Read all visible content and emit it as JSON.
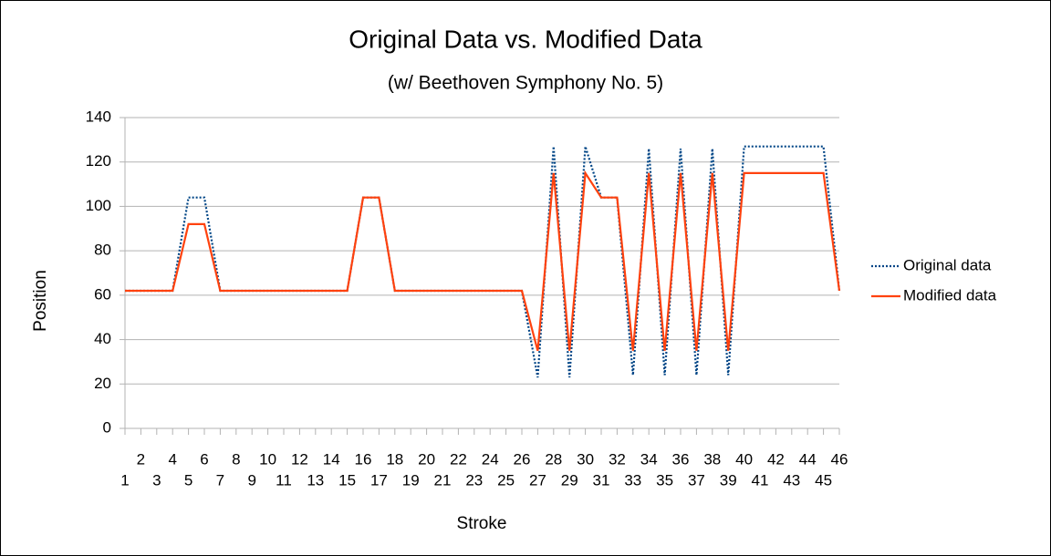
{
  "chart_data": {
    "type": "line",
    "title": "Original Data vs. Modified Data",
    "subtitle": "(w/ Beethoven Symphony No. 5)",
    "x_label": "Stroke",
    "y_label": "Position",
    "categories": [
      "1",
      "2",
      "3",
      "4",
      "5",
      "6",
      "7",
      "8",
      "9",
      "10",
      "11",
      "12",
      "13",
      "14",
      "15",
      "16",
      "17",
      "18",
      "19",
      "20",
      "21",
      "22",
      "23",
      "24",
      "25",
      "26",
      "27",
      "28",
      "29",
      "30",
      "31",
      "32",
      "33",
      "34",
      "35",
      "36",
      "37",
      "38",
      "39",
      "40",
      "41",
      "42",
      "43",
      "44",
      "45",
      "46"
    ],
    "series": [
      {
        "name": "Original data",
        "color": "#004586",
        "dash": "dotted",
        "values": [
          62,
          62,
          62,
          62,
          104,
          104,
          62,
          62,
          62,
          62,
          62,
          62,
          62,
          62,
          62,
          104,
          104,
          62,
          62,
          62,
          62,
          62,
          62,
          62,
          62,
          62,
          23,
          127,
          23,
          127,
          104,
          104,
          24,
          126,
          24,
          126,
          24,
          126,
          24,
          127,
          127,
          127,
          127,
          127,
          127,
          62
        ]
      },
      {
        "name": "Modified data",
        "color": "#ff420e",
        "dash": "solid",
        "values": [
          62,
          62,
          62,
          62,
          92,
          92,
          62,
          62,
          62,
          62,
          62,
          62,
          62,
          62,
          62,
          104,
          104,
          62,
          62,
          62,
          62,
          62,
          62,
          62,
          62,
          62,
          35,
          115,
          35,
          115,
          104,
          104,
          35,
          115,
          35,
          115,
          35,
          115,
          35,
          115,
          115,
          115,
          115,
          115,
          115,
          62
        ]
      }
    ],
    "ylim": [
      0,
      140
    ],
    "yticks": [
      0,
      20,
      40,
      60,
      80,
      100,
      120,
      140
    ],
    "grid": true,
    "legend": "right"
  }
}
